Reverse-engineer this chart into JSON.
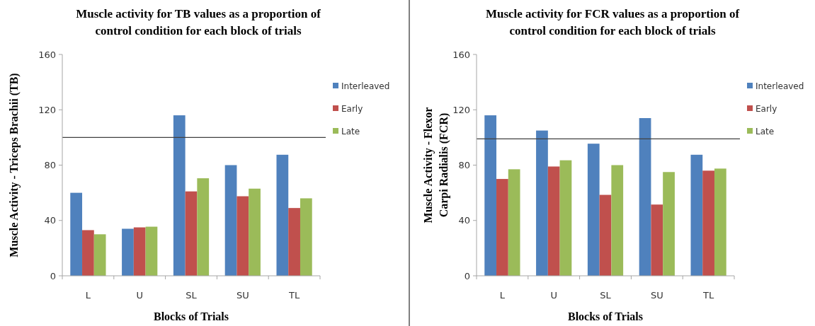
{
  "chart_data": [
    {
      "type": "bar",
      "title": "Muscle activity for TB values as a proportion of\ncontrol condition for each block of trials",
      "xlabel": "Blocks of Trials",
      "ylabel": "Muscle Activity - Triceps Brachii (TB)",
      "categories": [
        "L",
        "U",
        "SL",
        "SU",
        "TL"
      ],
      "series": [
        {
          "name": "Interleaved",
          "color": "#4f81bd",
          "values": [
            60,
            34,
            116,
            80,
            87.5
          ]
        },
        {
          "name": "Early",
          "color": "#c0504d",
          "values": [
            33,
            35,
            61,
            57.5,
            49
          ]
        },
        {
          "name": "Late",
          "color": "#9bbb59",
          "values": [
            30,
            35.5,
            70.5,
            63,
            56
          ]
        }
      ],
      "ylim": [
        0,
        160
      ],
      "yticks": [
        0,
        40,
        80,
        120,
        160
      ],
      "grid": false,
      "legend": "right",
      "ref_lines": [
        {
          "axis": "y",
          "value": 100,
          "color": "#404040"
        }
      ]
    },
    {
      "type": "bar",
      "title": "Muscle activity for FCR values as a proportion of\ncontrol condition for each block of trials",
      "xlabel": "Blocks of Trials",
      "ylabel": "Muscle Activity - Flexor\nCarpi Radialis (FCR)",
      "categories": [
        "L",
        "U",
        "SL",
        "SU",
        "TL"
      ],
      "series": [
        {
          "name": "Interleaved",
          "color": "#4f81bd",
          "values": [
            116,
            105,
            95.5,
            114,
            87.5
          ]
        },
        {
          "name": "Early",
          "color": "#c0504d",
          "values": [
            70,
            79,
            58.5,
            51.5,
            76
          ]
        },
        {
          "name": "Late",
          "color": "#9bbb59",
          "values": [
            77,
            83.5,
            80,
            75,
            77.5
          ]
        }
      ],
      "ylim": [
        0,
        160
      ],
      "yticks": [
        0,
        40,
        80,
        120,
        160
      ],
      "grid": false,
      "legend": "right",
      "ref_lines": [
        {
          "axis": "y",
          "value": 99,
          "color": "#404040"
        }
      ]
    }
  ]
}
